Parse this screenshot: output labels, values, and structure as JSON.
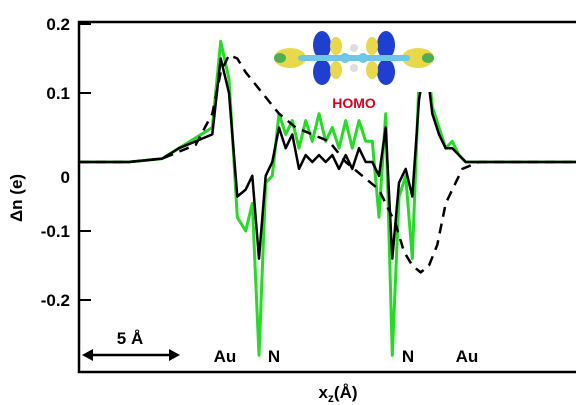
{
  "chart_data": {
    "type": "line",
    "title": "",
    "xlabel": "x",
    "xlabel_sub": "z",
    "xlabel_unit": "(Å)",
    "ylabel": "Δn (e)",
    "ylim": [
      -0.3,
      0.2
    ],
    "yticks": [
      {
        "value": 0.2,
        "label": "0.2"
      },
      {
        "value": 0.1,
        "label": "0.1"
      },
      {
        "value": 0.0,
        "label": "0"
      },
      {
        "value": -0.1,
        "label": "-0.1"
      },
      {
        "value": -0.2,
        "label": "-0.2"
      }
    ],
    "xlim": [
      0,
      30
    ],
    "grid": false,
    "annotations": {
      "scale_bar": "5 Å",
      "atoms": [
        "Au",
        "N",
        "N",
        "Au"
      ],
      "inset_label": "HOMO"
    },
    "colors": {
      "green_series": "#22dd22",
      "black_series": "#000000",
      "dashed_series": "#000000",
      "homo_label": "#e0001a",
      "orbital_yellow": "#e8d84a",
      "orbital_blue": "#1f3fd0",
      "orbital_cyan": "#6fc6e6",
      "orbital_green": "#4caf50"
    },
    "series": [
      {
        "style": "solid-green",
        "x": [
          0,
          3,
          5,
          6,
          7,
          8,
          8.5,
          9,
          9.5,
          10,
          10.4,
          10.8,
          11.2,
          11.6,
          12,
          12.4,
          12.8,
          13.2,
          13.6,
          14,
          14.4,
          14.8,
          15.2,
          15.6,
          16,
          16.4,
          16.8,
          17.2,
          17.6,
          18,
          18.4,
          18.8,
          19.2,
          19.6,
          20,
          20.4,
          20.8,
          21.2,
          21.6,
          22,
          22.4,
          22.8,
          23.2,
          24,
          25,
          27,
          30
        ],
        "y": [
          0.0,
          0.0,
          0.005,
          0.02,
          0.035,
          0.05,
          0.175,
          0.12,
          -0.08,
          -0.1,
          -0.06,
          -0.28,
          -0.03,
          -0.02,
          0.07,
          0.04,
          0.06,
          0.02,
          0.06,
          0.03,
          0.07,
          0.03,
          0.05,
          0.02,
          0.06,
          0.02,
          0.06,
          0.03,
          0.03,
          -0.08,
          0.07,
          -0.28,
          -0.05,
          -0.02,
          -0.14,
          0.12,
          0.175,
          0.08,
          0.05,
          0.02,
          0.03,
          0.01,
          0.0,
          0.0,
          0.0,
          0.0,
          0.0
        ]
      },
      {
        "style": "solid-black",
        "x": [
          0,
          3,
          5,
          6,
          7,
          8,
          8.5,
          9,
          9.5,
          10,
          10.4,
          10.8,
          11.2,
          11.6,
          12,
          12.4,
          12.8,
          13.2,
          13.6,
          14,
          14.4,
          14.8,
          15.2,
          15.6,
          16,
          16.4,
          16.8,
          17.2,
          17.6,
          18,
          18.4,
          18.8,
          19.2,
          19.6,
          20,
          20.4,
          20.8,
          21.2,
          21.6,
          22,
          22.4,
          22.8,
          23.2,
          24,
          25,
          27,
          30
        ],
        "y": [
          0.0,
          0.0,
          0.005,
          0.02,
          0.03,
          0.04,
          0.15,
          0.1,
          -0.05,
          -0.04,
          -0.02,
          -0.14,
          -0.02,
          0.0,
          0.05,
          0.02,
          0.04,
          -0.01,
          0.01,
          0.0,
          0.01,
          0.0,
          0.01,
          -0.01,
          0.01,
          -0.01,
          0.02,
          0.0,
          0.0,
          -0.02,
          0.05,
          -0.14,
          -0.03,
          -0.01,
          -0.05,
          0.09,
          0.15,
          0.07,
          0.04,
          0.02,
          0.02,
          0.01,
          0.0,
          0.0,
          0.0,
          0.0,
          0.0
        ]
      },
      {
        "style": "dashed-black",
        "x": [
          0,
          3,
          5,
          6,
          7,
          8,
          8.5,
          9,
          9.5,
          10,
          11,
          12,
          13,
          14,
          15,
          16,
          17,
          18,
          19,
          19.5,
          20,
          20.5,
          21,
          21.5,
          22,
          23,
          24,
          25,
          27,
          30
        ],
        "y": [
          0.0,
          0.0,
          0.005,
          0.015,
          0.025,
          0.07,
          0.13,
          0.155,
          0.15,
          0.13,
          0.1,
          0.07,
          0.05,
          0.04,
          0.03,
          0.0,
          -0.02,
          -0.04,
          -0.09,
          -0.13,
          -0.15,
          -0.16,
          -0.15,
          -0.12,
          -0.06,
          -0.01,
          0.0,
          0.0,
          0.0,
          0.0
        ]
      }
    ]
  }
}
